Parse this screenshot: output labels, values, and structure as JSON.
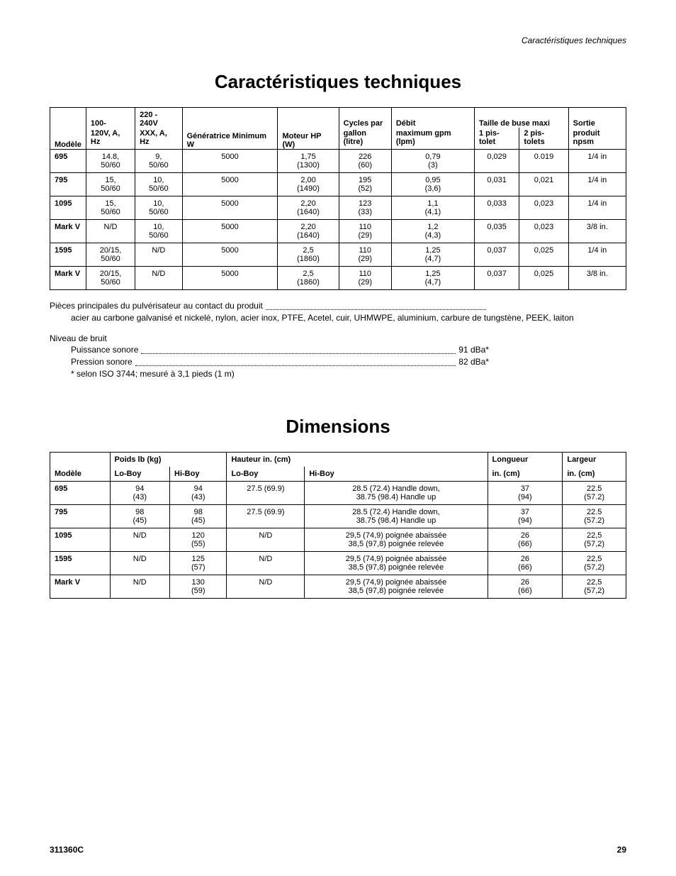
{
  "header_right": "Caractéristiques techniques",
  "title1": "Caractéristiques techniques",
  "title2": "Dimensions",
  "spec_table": {
    "group_headers": {
      "modele": "",
      "v100": "100-",
      "v220": "220 - 240V",
      "gen": "",
      "moteur": "",
      "cycles": "Cycles par",
      "debit": "Débit",
      "taille": "Taille de buse maxi",
      "sortie": "Sortie"
    },
    "sub_headers": {
      "modele": "Modèle",
      "v100": "120V, A, Hz",
      "v220": "XXX, A, Hz",
      "gen": "Génératrice Minimum W",
      "moteur": "Moteur HP (W)",
      "cycles": "gallon (litre)",
      "debit": "maximum gpm (lpm)",
      "p1": "1 pis-tolet",
      "p2": "2 pis-tolets",
      "sortie": "produit npsm"
    },
    "rows": [
      {
        "model": "695",
        "v100": "14.8,\n50/60",
        "v220": "9,\n50/60",
        "gen": "5000",
        "moteur": "1,75\n(1300)",
        "cycles": "226\n(60)",
        "debit": "0,79\n(3)",
        "p1": "0,029",
        "p2": "0.019",
        "sortie": "1/4 in"
      },
      {
        "model": "795",
        "v100": "15,\n50/60",
        "v220": "10,\n50/60",
        "gen": "5000",
        "moteur": "2,00\n(1490)",
        "cycles": "195\n(52)",
        "debit": "0,95\n(3,6)",
        "p1": "0,031",
        "p2": "0,021",
        "sortie": "1/4 in"
      },
      {
        "model": "1095",
        "v100": "15,\n50/60",
        "v220": "10,\n50/60",
        "gen": "5000",
        "moteur": "2,20\n(1640)",
        "cycles": "123\n(33)",
        "debit": "1,1\n(4,1)",
        "p1": "0,033",
        "p2": "0,023",
        "sortie": "1/4 in"
      },
      {
        "model": "Mark V",
        "v100": "N/D",
        "v220": "10,\n50/60",
        "gen": "5000",
        "moteur": "2,20\n(1640)",
        "cycles": "110\n(29)",
        "debit": "1,2\n(4,3)",
        "p1": "0,035",
        "p2": "0,023",
        "sortie": "3/8 in."
      },
      {
        "model": "1595",
        "v100": "20/15,\n50/60",
        "v220": "N/D",
        "gen": "5000",
        "moteur": "2,5\n(1860)",
        "cycles": "110\n(29)",
        "debit": "1,25\n(4,7)",
        "p1": "0,037",
        "p2": "0,025",
        "sortie": "1/4 in"
      },
      {
        "model": "Mark V",
        "v100": "20/15,\n50/60",
        "v220": "N/D",
        "gen": "5000",
        "moteur": "2,5\n(1860)",
        "cycles": "110\n(29)",
        "debit": "1,25\n(4,7)",
        "p1": "0,037",
        "p2": "0,025",
        "sortie": "3/8 in."
      }
    ]
  },
  "notes": {
    "materials_label": "Pièces principales du pulvérisateur au contact du produit",
    "materials_value": "acier au carbone galvanisé et nickelé, nylon, acier inox, PTFE, Acetel, cuir, UHMWPE, aluminium, carbure de tungstène, PEEK, laiton",
    "noise_title": "Niveau de bruit",
    "power_label": "Puissance sonore",
    "power_value": "91 dBa*",
    "pressure_label": "Pression sonore",
    "pressure_value": "82 dBa*",
    "iso_note": "* selon ISO 3744; mesuré à 3,1 pieds (1 m)"
  },
  "dim_table": {
    "group_headers": {
      "modele": "",
      "poids": "Poids lb (kg)",
      "hauteur": "Hauteur in. (cm)",
      "longueur": "Longueur",
      "largeur": "Largeur"
    },
    "sub_headers": {
      "modele": "Modèle",
      "loboy_p": "Lo-Boy",
      "hiboy_p": "Hi-Boy",
      "loboy_h": "Lo-Boy",
      "hiboy_h": "Hi-Boy",
      "longueur": "in. (cm)",
      "largeur": "in. (cm)"
    },
    "rows": [
      {
        "model": "695",
        "lp": "94\n(43)",
        "hp": "94\n(43)",
        "lh": "27.5 (69.9)",
        "hh": "28.5 (72.4) Handle down,\n38.75 (98.4) Handle up",
        "long": "37\n(94)",
        "larg": "22.5\n(57.2)"
      },
      {
        "model": "795",
        "lp": "98\n(45)",
        "hp": "98\n(45)",
        "lh": "27.5 (69.9)",
        "hh": "28.5 (72.4) Handle down,\n38.75 (98.4) Handle up",
        "long": "37\n(94)",
        "larg": "22.5\n(57.2)"
      },
      {
        "model": "1095",
        "lp": "N/D",
        "hp": "120\n(55)",
        "lh": "N/D",
        "hh": "29,5 (74,9) poignée abaissée\n38,5 (97,8) poignée relevée",
        "long": "26\n(66)",
        "larg": "22,5\n(57,2)"
      },
      {
        "model": "1595",
        "lp": "N/D",
        "hp": "125\n(57)",
        "lh": "N/D",
        "hh": "29,5 (74,9) poignée abaissée\n38,5 (97,8) poignée relevée",
        "long": "26\n(66)",
        "larg": "22,5\n(57,2)"
      },
      {
        "model": "Mark V",
        "lp": "N/D",
        "hp": "130\n(59)",
        "lh": "N/D",
        "hh": "29,5 (74,9) poignée abaissée\n38,5 (97,8) poignée relevée",
        "long": "26\n(66)",
        "larg": "22,5\n(57,2)"
      }
    ]
  },
  "footer": {
    "doc_number": "311360C",
    "page_number": "29"
  },
  "colors": {
    "text": "#000000",
    "background": "#ffffff",
    "border": "#000000"
  },
  "typography": {
    "title_fontsize": 26,
    "body_fontsize": 11,
    "notes_fontsize": 12,
    "font_family": "Arial"
  }
}
